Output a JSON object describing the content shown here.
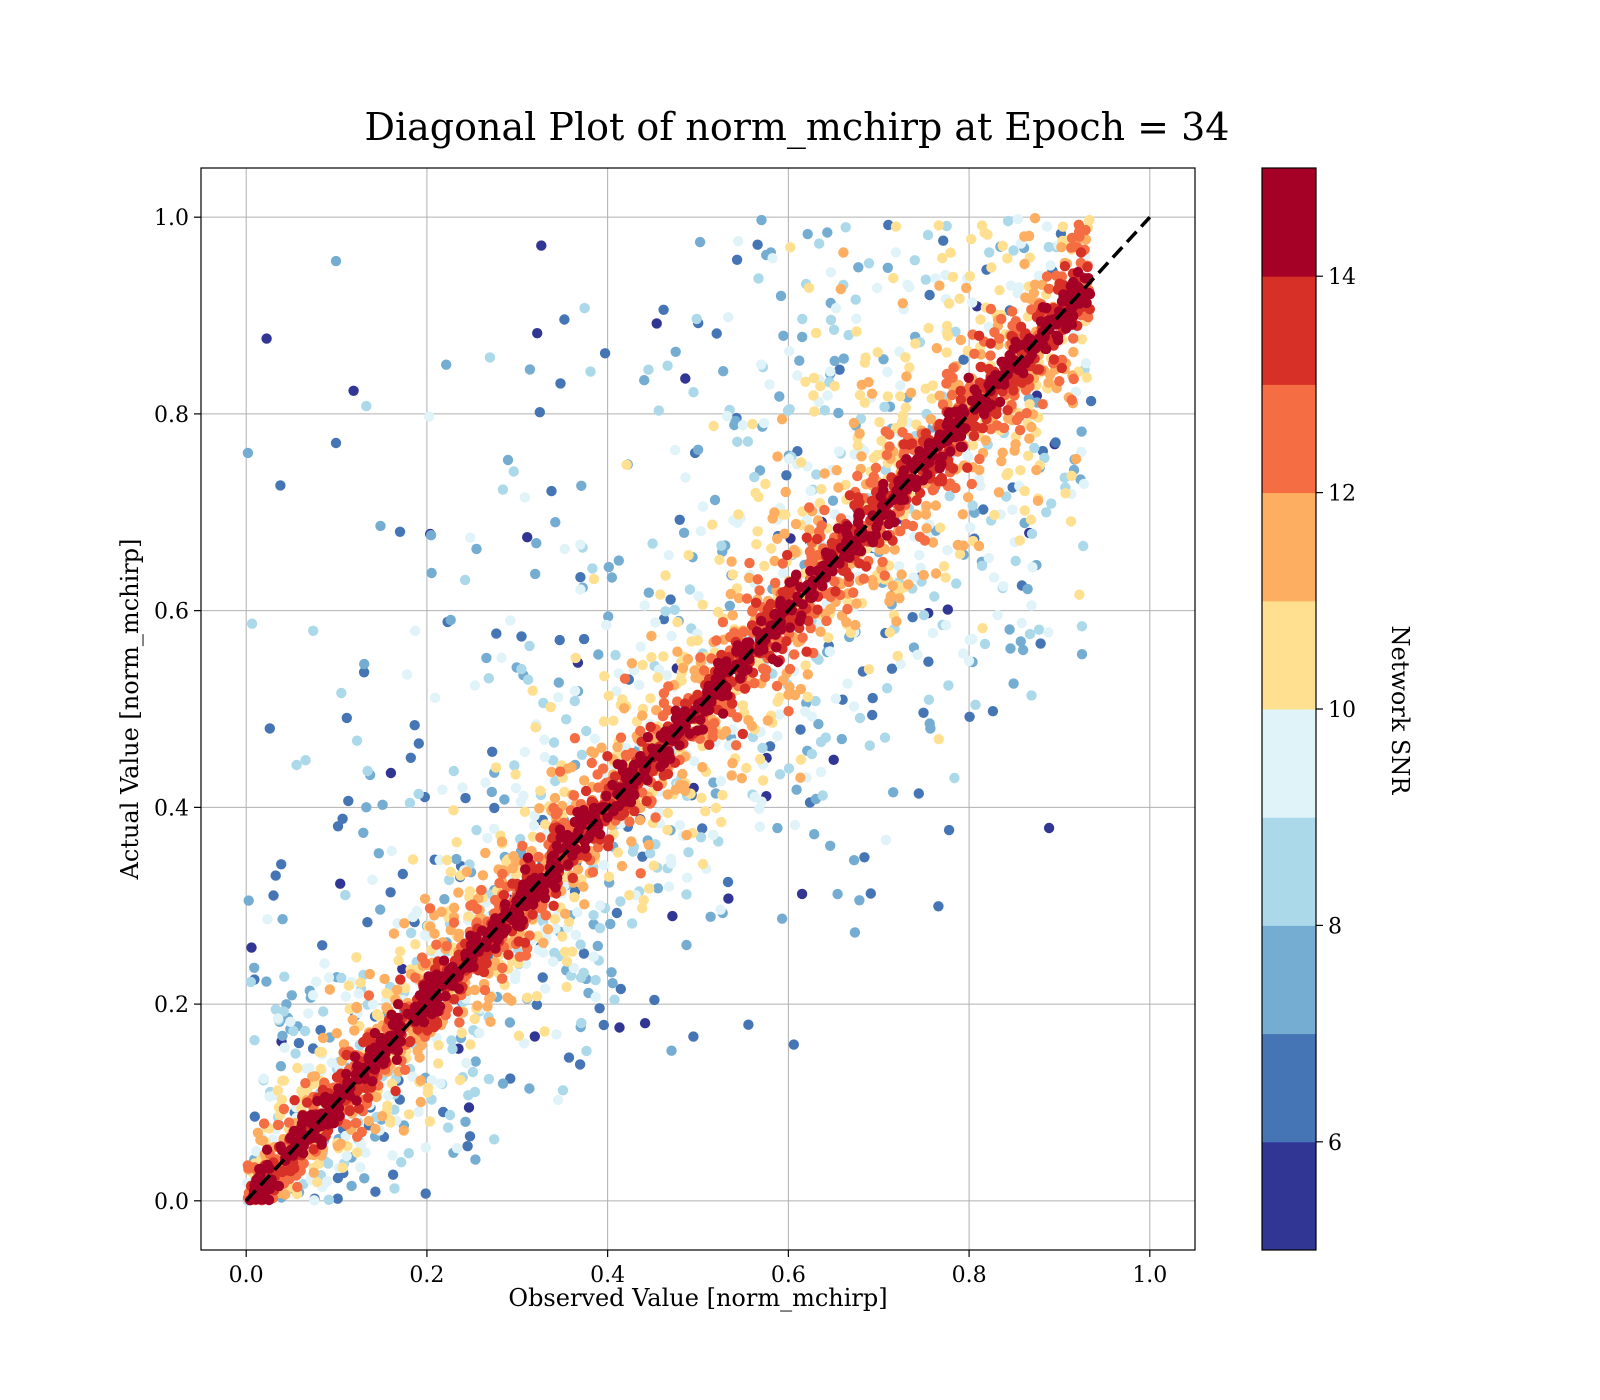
{
  "chart_data": {
    "type": "scatter",
    "title": "Diagonal Plot of norm_mchirp at Epoch = 34",
    "xlabel": "Observed Value [norm_mchirp]",
    "ylabel": "Actual Value [norm_mchirp]",
    "xlim": [
      -0.05,
      1.05
    ],
    "ylim": [
      -0.05,
      1.05
    ],
    "xticks": [
      "0.0",
      "0.2",
      "0.4",
      "0.6",
      "0.8",
      "1.0"
    ],
    "yticks": [
      "0.0",
      "0.2",
      "0.4",
      "0.6",
      "0.8",
      "1.0"
    ],
    "grid": true,
    "reference_line": {
      "style": "dashed",
      "color": "#000000",
      "from": [
        0,
        0
      ],
      "to": [
        1,
        1
      ]
    },
    "colorbar": {
      "label": "Network SNR",
      "min": 5,
      "max": 15,
      "ticks": [
        "6",
        "8",
        "10",
        "12",
        "14"
      ],
      "colors": [
        "#313695",
        "#4575b4",
        "#74add1",
        "#abd9e9",
        "#e0f3f8",
        "#fee090",
        "#fdae61",
        "#f46d43",
        "#d73027",
        "#a50026"
      ]
    },
    "x_range_observed": [
      0.0,
      0.93
    ],
    "y_range_actual": [
      0.0,
      1.0
    ],
    "description_of_distribution": "dense high-SNR band along the diagonal; low-SNR points scatter widely above and below"
  }
}
